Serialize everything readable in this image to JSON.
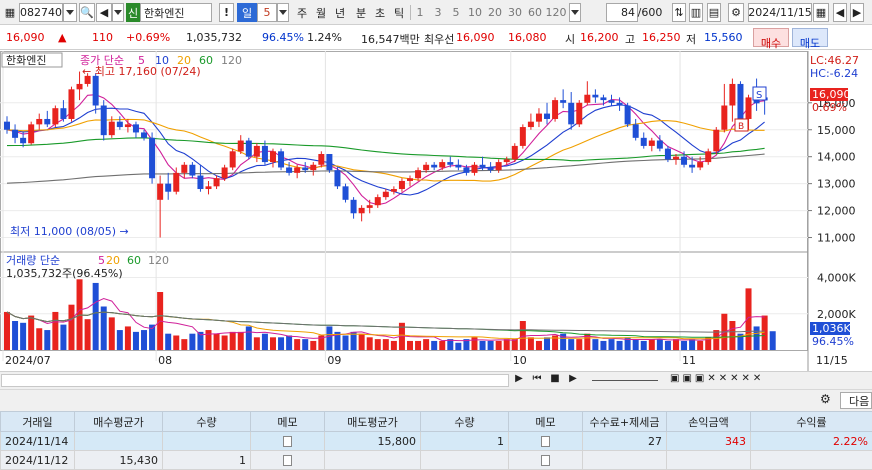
{
  "toolbar": {
    "code": "082740",
    "market_badge": "신",
    "stock_name": "한화엔진",
    "period_selected": "일",
    "period_num": "5",
    "periods": [
      "주",
      "월",
      "년",
      "분",
      "초",
      "틱"
    ],
    "minutes": [
      "1",
      "3",
      "5",
      "10",
      "20",
      "30",
      "60",
      "120"
    ],
    "count": "84",
    "count_total": "/600",
    "date": "2024/11/15"
  },
  "quote": {
    "price": "16,090",
    "change": "110",
    "change_pct": "+0.69%",
    "volume": "1,035,732",
    "vol_ratio": "96.45%",
    "turnover": "1.24%",
    "amount": "16,547백만",
    "best_ask_label": "최우선",
    "ask": "16,090",
    "bid": "16,080",
    "open_label": "시",
    "open": "16,200",
    "high_label": "고",
    "high": "16,250",
    "low_label": "저",
    "low": "15,560",
    "buy_label": "매수",
    "sell_label": "매도"
  },
  "chart_labels": {
    "stock_tag": "한화엔진",
    "price_legend": "종가 단순",
    "ma_periods": [
      "5",
      "10",
      "20",
      "60",
      "120"
    ],
    "max_note": "최고 17,160 (07/24)",
    "min_note": "최저 11,000 (08/05)",
    "lc": "LC:46.27",
    "hc": "HC:-6.24",
    "price_tag": "16,090",
    "pct_tag": "0.69%",
    "vol_legend": "거래량 단순",
    "vol_ma": [
      "5",
      "20",
      "60",
      "120"
    ],
    "vol_value": "1,035,732주(96.45%)",
    "vol_tag": "1,036K",
    "vol_pct_tag": "96.45%",
    "s_mark": "S",
    "b_mark": "B"
  },
  "colors": {
    "up": "#e8231e",
    "down": "#1f4fd6",
    "ma5": "#d0209a",
    "ma10": "#1f3fd0",
    "ma20": "#f0a000",
    "ma60": "#1a9a2a",
    "ma120": "#707070"
  },
  "chart_data": {
    "type": "candlestick",
    "y_ticks": [
      11000,
      12000,
      13000,
      14000,
      15000,
      16000
    ],
    "ylim": [
      10500,
      17700
    ],
    "vol_ticks": [
      "2,000K",
      "4,000K"
    ],
    "vol_max": 4800,
    "x_labels": [
      "2024/07",
      "08",
      "09",
      "10",
      "11",
      "11/15"
    ],
    "x_label_index": [
      0,
      19,
      40,
      63,
      84
    ],
    "candles": [
      [
        15300,
        15500,
        14850,
        15000
      ],
      [
        15000,
        15200,
        14500,
        14700
      ],
      [
        14700,
        14900,
        14350,
        14500
      ],
      [
        14500,
        15300,
        14450,
        15200
      ],
      [
        15200,
        15600,
        15000,
        15400
      ],
      [
        15400,
        15700,
        15100,
        15200
      ],
      [
        15200,
        15900,
        15100,
        15800
      ],
      [
        15800,
        16100,
        15300,
        15400
      ],
      [
        15400,
        16600,
        15300,
        16500
      ],
      [
        16500,
        17160,
        16100,
        16700
      ],
      [
        16700,
        17100,
        16600,
        17000
      ],
      [
        17000,
        17100,
        15600,
        15900
      ],
      [
        15900,
        16100,
        14600,
        14800
      ],
      [
        14800,
        15500,
        14700,
        15300
      ],
      [
        15300,
        15500,
        15000,
        15100
      ],
      [
        15100,
        15400,
        14900,
        15200
      ],
      [
        15200,
        15300,
        14700,
        14900
      ],
      [
        14900,
        15000,
        14600,
        14700
      ],
      [
        14700,
        14900,
        13000,
        13200
      ],
      [
        12400,
        13300,
        11000,
        13000
      ],
      [
        13000,
        13400,
        12400,
        12700
      ],
      [
        12700,
        13600,
        12600,
        13400
      ],
      [
        13400,
        13800,
        13200,
        13700
      ],
      [
        13700,
        13800,
        13200,
        13300
      ],
      [
        13300,
        13700,
        12700,
        12800
      ],
      [
        12800,
        13100,
        12600,
        12900
      ],
      [
        12900,
        13300,
        12800,
        13200
      ],
      [
        13200,
        13700,
        13100,
        13600
      ],
      [
        13600,
        14300,
        13500,
        14200
      ],
      [
        14200,
        14800,
        14100,
        14600
      ],
      [
        14600,
        14700,
        13900,
        14000
      ],
      [
        14000,
        14500,
        13800,
        14400
      ],
      [
        14400,
        14600,
        13700,
        13800
      ],
      [
        13800,
        14300,
        13600,
        14200
      ],
      [
        14200,
        14300,
        13500,
        13600
      ],
      [
        13600,
        13800,
        13300,
        13400
      ],
      [
        13400,
        13700,
        13200,
        13600
      ],
      [
        13600,
        13800,
        13400,
        13500
      ],
      [
        13500,
        13800,
        13300,
        13700
      ],
      [
        13700,
        14200,
        13600,
        14100
      ],
      [
        14100,
        14100,
        13400,
        13500
      ],
      [
        13500,
        13600,
        12800,
        12900
      ],
      [
        12900,
        13000,
        12300,
        12400
      ],
      [
        12400,
        12500,
        11700,
        11900
      ],
      [
        11900,
        12200,
        11600,
        12100
      ],
      [
        12100,
        12400,
        11900,
        12200
      ],
      [
        12200,
        12600,
        12100,
        12500
      ],
      [
        12500,
        12800,
        12400,
        12700
      ],
      [
        12700,
        12900,
        12600,
        12800
      ],
      [
        12800,
        13200,
        12700,
        13100
      ],
      [
        13100,
        13300,
        12900,
        13200
      ],
      [
        13200,
        13600,
        13100,
        13500
      ],
      [
        13500,
        13800,
        13400,
        13700
      ],
      [
        13700,
        13800,
        13500,
        13600
      ],
      [
        13600,
        13900,
        13500,
        13800
      ],
      [
        13800,
        14000,
        13600,
        13700
      ],
      [
        13700,
        13900,
        13500,
        13600
      ],
      [
        13600,
        13700,
        13300,
        13400
      ],
      [
        13400,
        13800,
        13300,
        13700
      ],
      [
        13700,
        14000,
        13500,
        13600
      ],
      [
        13600,
        13800,
        13400,
        13500
      ],
      [
        13500,
        13900,
        13400,
        13800
      ],
      [
        13800,
        14000,
        13700,
        13900
      ],
      [
        13900,
        14500,
        13800,
        14400
      ],
      [
        14400,
        15200,
        14300,
        15100
      ],
      [
        15100,
        15600,
        15000,
        15300
      ],
      [
        15300,
        15800,
        15100,
        15600
      ],
      [
        15600,
        16000,
        15200,
        15400
      ],
      [
        15400,
        16200,
        15300,
        16100
      ],
      [
        16100,
        16500,
        15800,
        16000
      ],
      [
        16000,
        16400,
        15000,
        15200
      ],
      [
        15200,
        16100,
        15100,
        16000
      ],
      [
        16000,
        16800,
        15900,
        16300
      ],
      [
        16300,
        16500,
        16000,
        16200
      ],
      [
        16200,
        16300,
        15900,
        16100
      ],
      [
        16100,
        16300,
        15900,
        16000
      ],
      [
        16000,
        16200,
        15700,
        15900
      ],
      [
        15900,
        16000,
        15100,
        15200
      ],
      [
        15200,
        15400,
        14600,
        14700
      ],
      [
        14700,
        14900,
        14300,
        14400
      ],
      [
        14400,
        14700,
        14200,
        14600
      ],
      [
        14600,
        14800,
        14200,
        14300
      ],
      [
        14300,
        14400,
        13800,
        13900
      ],
      [
        13900,
        14100,
        13700,
        14000
      ],
      [
        14000,
        14200,
        13600,
        13700
      ],
      [
        13700,
        14000,
        13400,
        13600
      ],
      [
        13600,
        14000,
        13500,
        13800
      ],
      [
        13800,
        14300,
        13700,
        14200
      ],
      [
        14200,
        15100,
        14100,
        15000
      ],
      [
        15000,
        16700,
        14900,
        15900
      ],
      [
        15900,
        16900,
        15300,
        16700
      ],
      [
        16700,
        16800,
        15200,
        15400
      ],
      [
        15400,
        16300,
        15000,
        16200
      ],
      [
        16200,
        16900,
        15700,
        15980
      ],
      [
        16200,
        16250,
        15560,
        16090
      ]
    ],
    "volumes": [
      2100,
      1600,
      1500,
      1900,
      1200,
      1100,
      2100,
      1400,
      2500,
      3900,
      1700,
      3700,
      2400,
      1800,
      1100,
      1300,
      1000,
      1100,
      1400,
      3200,
      900,
      800,
      600,
      900,
      1000,
      1100,
      900,
      800,
      1000,
      1000,
      1300,
      700,
      900,
      700,
      700,
      800,
      600,
      600,
      500,
      800,
      1300,
      1000,
      800,
      1000,
      900,
      700,
      600,
      600,
      500,
      1500,
      500,
      500,
      600,
      500,
      500,
      600,
      400,
      600,
      700,
      500,
      500,
      500,
      600,
      600,
      1600,
      700,
      500,
      700,
      800,
      900,
      600,
      600,
      900,
      600,
      500,
      600,
      500,
      700,
      600,
      500,
      600,
      600,
      500,
      600,
      500,
      600,
      500,
      700,
      1100,
      2000,
      1600,
      900,
      3400,
      1300,
      1900,
      1036
    ],
    "volume_up": [
      1,
      0,
      0,
      1,
      1,
      0,
      1,
      0,
      1,
      1,
      1,
      0,
      0,
      1,
      0,
      1,
      0,
      0,
      0,
      1,
      0,
      1,
      1,
      0,
      0,
      1,
      1,
      1,
      1,
      1,
      0,
      1,
      0,
      1,
      0,
      0,
      1,
      0,
      1,
      1,
      0,
      0,
      0,
      0,
      1,
      1,
      1,
      1,
      1,
      1,
      1,
      1,
      1,
      0,
      1,
      0,
      0,
      0,
      1,
      0,
      0,
      1,
      1,
      1,
      1,
      1,
      1,
      0,
      1,
      0,
      0,
      1,
      1,
      0,
      0,
      0,
      0,
      0,
      0,
      0,
      1,
      0,
      0,
      1,
      0,
      0,
      1,
      1,
      1,
      1,
      1,
      0,
      1,
      0,
      1,
      0
    ]
  }
}
